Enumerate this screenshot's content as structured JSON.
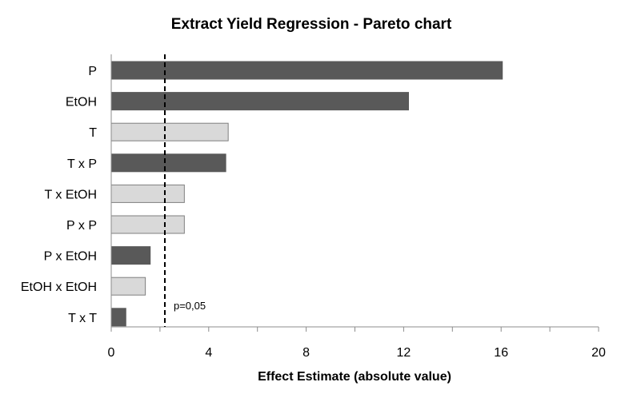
{
  "chart_data": {
    "type": "bar",
    "orientation": "horizontal",
    "title": "Extract Yield Regression - Pareto chart",
    "xlabel": "Effect Estimate (absolute value)",
    "ylabel": "",
    "xlim": [
      0,
      20
    ],
    "xticks": [
      0,
      4,
      8,
      12,
      16,
      20
    ],
    "grid": false,
    "categories": [
      "P",
      "EtOH",
      "T",
      "T x P",
      "T x EtOH",
      "P x P",
      "P x EtOH",
      "EtOH x EtOH",
      "T x T"
    ],
    "values": [
      16.05,
      12.2,
      4.8,
      4.7,
      3.0,
      3.0,
      1.6,
      1.4,
      0.6
    ],
    "bar_fill": [
      "dark",
      "dark",
      "light",
      "dark",
      "light",
      "light",
      "dark",
      "light",
      "dark"
    ],
    "reference_line": {
      "value": 2.2,
      "label": "p=0,05"
    },
    "colors": {
      "dark": "#595959",
      "light": "#d9d9d9",
      "light_edge": "#7f7f7f"
    }
  }
}
